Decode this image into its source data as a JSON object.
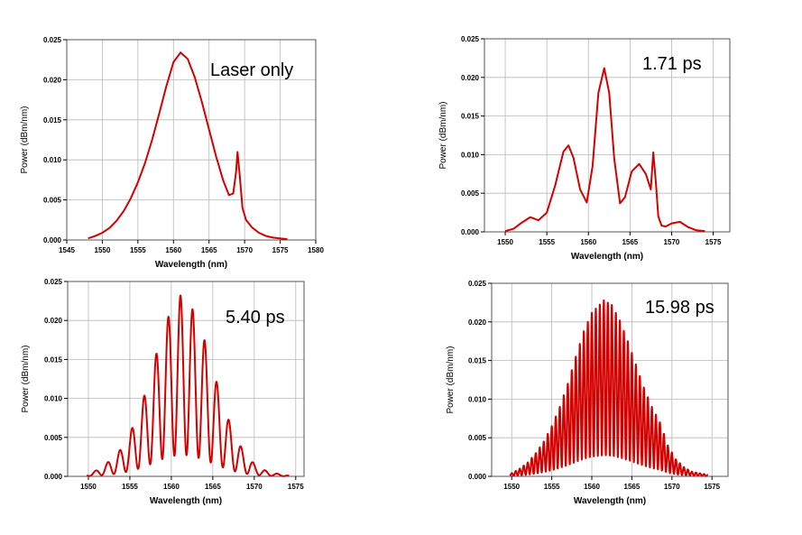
{
  "colors": {
    "trace": "#d40000",
    "grid": "#b8b8b8",
    "frame": "#555555"
  },
  "chart_data": [
    {
      "type": "line",
      "annotation": "Laser only",
      "xlabel": "Wavelength (nm)",
      "ylabel": "Power (dBm/nm)",
      "xlim": [
        1545,
        1580
      ],
      "ylim": [
        0,
        0.025
      ],
      "xticks": [
        1545,
        1550,
        1555,
        1560,
        1565,
        1570,
        1575,
        1580
      ],
      "yticks": [
        "0.000",
        "0.005",
        "0.010",
        "0.015",
        "0.020",
        "0.025"
      ],
      "grid": true,
      "series": [
        {
          "x": [
            1548,
            1549,
            1550,
            1551,
            1552,
            1553,
            1554,
            1555,
            1556,
            1557,
            1558,
            1559,
            1560,
            1561,
            1562,
            1563,
            1564,
            1565,
            1566,
            1567,
            1567.8,
            1568.4,
            1568.8,
            1569.0,
            1569.3,
            1569.7,
            1570.2,
            1571,
            1572,
            1573,
            1574,
            1575,
            1576
          ],
          "y": [
            0.0002,
            0.0005,
            0.0009,
            0.0015,
            0.0024,
            0.0036,
            0.0052,
            0.0072,
            0.0096,
            0.0125,
            0.0158,
            0.0192,
            0.0222,
            0.0234,
            0.0226,
            0.0203,
            0.0172,
            0.0138,
            0.0104,
            0.0074,
            0.0056,
            0.0058,
            0.0085,
            0.011,
            0.0082,
            0.004,
            0.0025,
            0.0016,
            0.0009,
            0.0005,
            0.0003,
            0.0002,
            0.0001
          ]
        }
      ]
    },
    {
      "type": "line",
      "annotation": "1.71 ps",
      "xlabel": "Wavelength (nm)",
      "ylabel": "Power (dBm/nm)",
      "xlim": [
        1547.5,
        1577
      ],
      "ylim": [
        0,
        0.025
      ],
      "xticks": [
        1550,
        1555,
        1560,
        1565,
        1570,
        1575
      ],
      "yticks": [
        "0.000",
        "0.005",
        "0.010",
        "0.015",
        "0.020",
        "0.025"
      ],
      "grid": true,
      "series": [
        {
          "x": [
            1550,
            1551,
            1552,
            1553,
            1554,
            1555,
            1556,
            1557,
            1557.6,
            1558.2,
            1559,
            1559.8,
            1560.5,
            1561.2,
            1561.9,
            1562.5,
            1563.1,
            1563.8,
            1564.4,
            1565.2,
            1566.1,
            1566.9,
            1567.5,
            1567.8,
            1568.1,
            1568.4,
            1568.8,
            1569.3,
            1570,
            1571,
            1572,
            1573,
            1574
          ],
          "y": [
            0.0001,
            0.0004,
            0.0012,
            0.0019,
            0.0015,
            0.0025,
            0.006,
            0.0104,
            0.0112,
            0.0096,
            0.0055,
            0.0038,
            0.0085,
            0.018,
            0.0212,
            0.018,
            0.0095,
            0.0037,
            0.0045,
            0.0078,
            0.0088,
            0.0075,
            0.0055,
            0.0103,
            0.0065,
            0.002,
            0.0008,
            0.0007,
            0.0011,
            0.0013,
            0.0006,
            0.0002,
            0.0001
          ]
        }
      ]
    },
    {
      "type": "line",
      "annotation": "5.40 ps",
      "xlabel": "Wavelength (nm)",
      "ylabel": "Power (dBm/nm)",
      "xlim": [
        1547.5,
        1576
      ],
      "ylim": [
        0,
        0.025
      ],
      "xticks": [
        1550,
        1555,
        1560,
        1565,
        1570,
        1575
      ],
      "yticks": [
        "0.000",
        "0.005",
        "0.010",
        "0.015",
        "0.020",
        "0.025"
      ],
      "grid": true,
      "fringe_period_nm": 1.46,
      "fringe_phase_nm": 1561.1,
      "envelope": {
        "x": [
          1549.8,
          1551,
          1552,
          1553,
          1554,
          1555,
          1556,
          1557,
          1558,
          1559,
          1560,
          1561.1,
          1562,
          1563,
          1564,
          1565,
          1566,
          1567,
          1568,
          1569,
          1570,
          1571,
          1572,
          1573,
          1574.2
        ],
        "y": [
          0.0002,
          0.0008,
          0.0015,
          0.0024,
          0.0036,
          0.0055,
          0.008,
          0.0112,
          0.015,
          0.0188,
          0.0214,
          0.0232,
          0.0226,
          0.0205,
          0.0175,
          0.0138,
          0.0102,
          0.007,
          0.0045,
          0.0028,
          0.0016,
          0.0009,
          0.0005,
          0.0003,
          0.0001
        ]
      }
    },
    {
      "type": "line",
      "annotation": "15.98 ps",
      "xlabel": "Wavelength (nm)",
      "ylabel": "Power (dBm/nm)",
      "xlim": [
        1547.5,
        1577
      ],
      "ylim": [
        0,
        0.025
      ],
      "xticks": [
        1550,
        1555,
        1560,
        1565,
        1570,
        1575
      ],
      "yticks": [
        "0.000",
        "0.005",
        "0.010",
        "0.015",
        "0.020",
        "0.025"
      ],
      "grid": true,
      "fringe_period_nm": 0.5,
      "fringe_phase_nm": 1561.5,
      "envelope": {
        "x": [
          1549.8,
          1551,
          1552,
          1553,
          1554,
          1555,
          1556,
          1557,
          1558,
          1559,
          1560,
          1561.5,
          1562.5,
          1563.5,
          1564.5,
          1565.5,
          1566.5,
          1567.5,
          1568.5,
          1569.5,
          1570.5,
          1571.5,
          1572.5,
          1574.5
        ],
        "y": [
          0.0003,
          0.001,
          0.0018,
          0.003,
          0.0045,
          0.0065,
          0.009,
          0.012,
          0.0155,
          0.0188,
          0.0212,
          0.0228,
          0.0222,
          0.0202,
          0.0175,
          0.0145,
          0.0115,
          0.009,
          0.007,
          0.004,
          0.0022,
          0.0012,
          0.0006,
          0.0002
        ]
      }
    }
  ]
}
